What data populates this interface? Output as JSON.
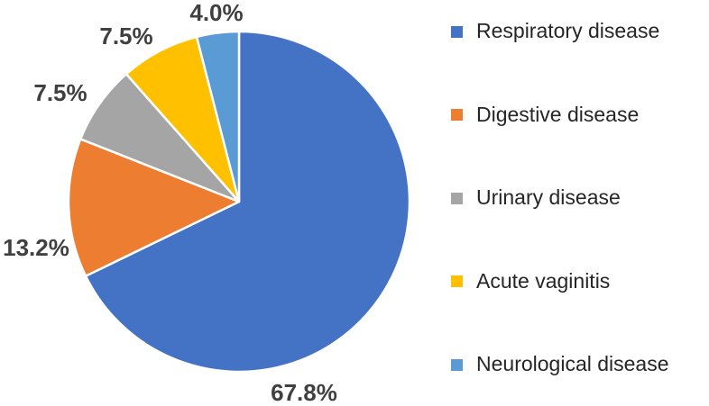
{
  "chart_data": {
    "type": "pie",
    "title": "",
    "legend_position": "right",
    "start_angle_deg": 0,
    "direction": "clockwise",
    "total": 100,
    "slices": [
      {
        "label": "Respiratory disease",
        "value": 67.8,
        "data_label": "67.8%",
        "color": "#4472C4"
      },
      {
        "label": "Digestive disease",
        "value": 13.2,
        "data_label": "13.2%",
        "color": "#ED7D31"
      },
      {
        "label": "Urinary disease",
        "value": 7.5,
        "data_label": "7.5%",
        "color": "#A5A5A5"
      },
      {
        "label": "Acute vaginitis",
        "value": 7.5,
        "data_label": "7.5%",
        "color": "#FFC000"
      },
      {
        "label": "Neurological disease",
        "value": 4.0,
        "data_label": "4.0%",
        "color": "#5B9BD5"
      }
    ]
  }
}
